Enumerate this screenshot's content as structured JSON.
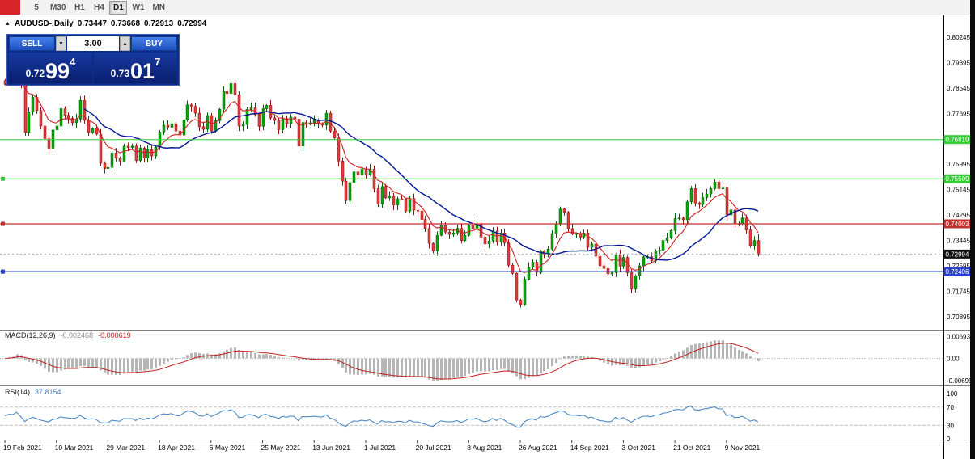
{
  "toolbar": {
    "periods": [
      {
        "label": "5",
        "active": false
      },
      {
        "label": "M30",
        "active": false
      },
      {
        "label": "H1",
        "active": false
      },
      {
        "label": "H4",
        "active": false
      },
      {
        "label": "D1",
        "active": true
      },
      {
        "label": "W1",
        "active": false
      },
      {
        "label": "MN",
        "active": false
      }
    ]
  },
  "symbol_header": {
    "collapse_icon": "▲",
    "title": "AUDUSD-,Daily",
    "open": "0.73447",
    "high": "0.73668",
    "low": "0.72913",
    "close": "0.72994"
  },
  "trade_panel": {
    "sell_label": "SELL",
    "buy_label": "BUY",
    "volume": "3.00",
    "bid": {
      "prefix": "0.72",
      "big": "99",
      "sup": "4"
    },
    "ask": {
      "prefix": "0.73",
      "big": "01",
      "sup": "7"
    }
  },
  "chart": {
    "axis_labels": [
      "0.80245",
      "0.79395",
      "0.78545",
      "0.77695",
      "0.76845",
      "0.75995",
      "0.75145",
      "0.74295",
      "0.73445",
      "0.72595",
      "0.71745",
      "0.70895"
    ],
    "levels": [
      {
        "value": 0.76819,
        "label": "0.76819",
        "color": "#35cc35",
        "width": 1,
        "handle": false
      },
      {
        "value": 0.75509,
        "label": "0.75509",
        "color": "#35cc35",
        "width": 1,
        "handle": true
      },
      {
        "value": 0.74003,
        "label": "0.74003",
        "color": "#c03030",
        "width": 1.2,
        "handle": true
      },
      {
        "value": 0.72406,
        "label": "0.72406",
        "color": "#2840cc",
        "width": 1.4,
        "handle": true
      }
    ],
    "current_price": {
      "value": 0.72994,
      "label": "0.72994",
      "badge_color": "#101010"
    }
  },
  "macd": {
    "name": "MACD(12,26,9)",
    "value_main": "-0.002468",
    "value_signal": "-0.000619",
    "axis": [
      "0.00693",
      "0.00",
      "-0.00699"
    ],
    "axis_values": [
      0.00693,
      0,
      -0.00699
    ]
  },
  "rsi": {
    "name": "RSI(14)",
    "value": "37.8154",
    "axis": [
      "100",
      "70",
      "30",
      "0"
    ],
    "axis_values": [
      100,
      70,
      30,
      0
    ],
    "levels": [
      70,
      30
    ]
  },
  "time_axis": {
    "labels": [
      "19 Feb 2021",
      "10 Mar 2021",
      "29 Mar 2021",
      "18 Apr 2021",
      "6 May 2021",
      "25 May 2021",
      "13 Jun 2021",
      "1 Jul 2021",
      "20 Jul 2021",
      "8 Aug 2021",
      "26 Aug 2021",
      "14 Sep 2021",
      "3 Oct 2021",
      "21 Oct 2021",
      "9 Nov 2021"
    ]
  },
  "chart_data": {
    "type": "candlestick",
    "symbol": "AUDUSD-",
    "timeframe": "Daily",
    "visible_ohlc_last": {
      "open": 0.73447,
      "high": 0.73668,
      "low": 0.72913,
      "close": 0.72994
    },
    "first_open": 0.7879,
    "y_axis": {
      "min_label": 0.70895,
      "max_label": 0.80245,
      "tick_step": 0.0085
    },
    "ticks_every_n_candles": 13,
    "closes": [
      0.7866,
      0.7916,
      0.7909,
      0.7968,
      0.787,
      0.7706,
      0.7775,
      0.7823,
      0.7779,
      0.7727,
      0.7685,
      0.7653,
      0.7714,
      0.7727,
      0.7785,
      0.7763,
      0.7753,
      0.7738,
      0.775,
      0.7813,
      0.7746,
      0.7705,
      0.7719,
      0.77,
      0.7603,
      0.7585,
      0.7589,
      0.7637,
      0.762,
      0.761,
      0.766,
      0.7655,
      0.766,
      0.7612,
      0.7653,
      0.762,
      0.7649,
      0.7627,
      0.7656,
      0.7707,
      0.773,
      0.7723,
      0.7735,
      0.771,
      0.7697,
      0.7748,
      0.7798,
      0.7793,
      0.777,
      0.7725,
      0.7716,
      0.7762,
      0.771,
      0.7745,
      0.7783,
      0.7843,
      0.7836,
      0.7869,
      0.7832,
      0.7727,
      0.7732,
      0.7783,
      0.7788,
      0.7765,
      0.7726,
      0.7785,
      0.7796,
      0.7754,
      0.7746,
      0.7715,
      0.7752,
      0.7735,
      0.7757,
      0.775,
      0.766,
      0.7739,
      0.7735,
      0.7738,
      0.7745,
      0.7735,
      0.773,
      0.777,
      0.771,
      0.7687,
      0.761,
      0.7543,
      0.7478,
      0.7538,
      0.7574,
      0.7563,
      0.7584,
      0.7565,
      0.7583,
      0.7518,
      0.7466,
      0.7525,
      0.7487,
      0.7494,
      0.7463,
      0.7484,
      0.7483,
      0.7443,
      0.7485,
      0.7446,
      0.7443,
      0.7415,
      0.7385,
      0.7335,
      0.731,
      0.7362,
      0.7394,
      0.7373,
      0.7365,
      0.737,
      0.7385,
      0.7344,
      0.7362,
      0.7395,
      0.7385,
      0.74,
      0.7356,
      0.7333,
      0.7343,
      0.7377,
      0.734,
      0.737,
      0.7337,
      0.7262,
      0.7235,
      0.7146,
      0.713,
      0.7215,
      0.7255,
      0.7272,
      0.7238,
      0.731,
      0.7297,
      0.7316,
      0.7368,
      0.74,
      0.745,
      0.7439,
      0.7384,
      0.7366,
      0.7368,
      0.7356,
      0.737,
      0.7322,
      0.7333,
      0.7292,
      0.726,
      0.7251,
      0.7233,
      0.7237,
      0.7297,
      0.7259,
      0.7288,
      0.7237,
      0.7182,
      0.7227,
      0.726,
      0.729,
      0.729,
      0.7277,
      0.731,
      0.7312,
      0.7345,
      0.7354,
      0.7378,
      0.7418,
      0.742,
      0.7414,
      0.7474,
      0.7518,
      0.747,
      0.7465,
      0.7488,
      0.75,
      0.7518,
      0.754,
      0.7518,
      0.752,
      0.743,
      0.7447,
      0.7401,
      0.74,
      0.742,
      0.738,
      0.7328,
      0.7345,
      0.72994
    ],
    "horizontal_lines": [
      {
        "price": 0.76819,
        "color": "green"
      },
      {
        "price": 0.75509,
        "color": "green"
      },
      {
        "price": 0.74003,
        "color": "red"
      },
      {
        "price": 0.72406,
        "color": "blue"
      }
    ],
    "overlays": [
      {
        "type": "ema",
        "period": 8,
        "color": "red"
      },
      {
        "type": "sma",
        "period": 21,
        "color": "navy"
      }
    ],
    "indicators": [
      {
        "type": "macd",
        "fast": 12,
        "slow": 26,
        "signal": 9,
        "current_main": -0.002468,
        "current_signal": -0.000619
      },
      {
        "type": "rsi",
        "period": 14,
        "current": 37.8154,
        "levels": [
          70,
          30
        ]
      }
    ]
  }
}
